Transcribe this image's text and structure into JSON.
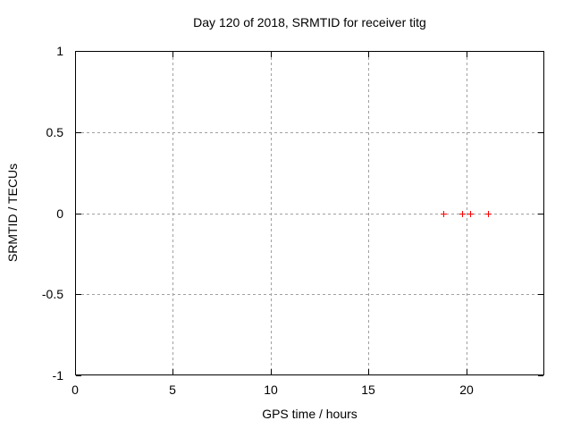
{
  "chart_data": {
    "type": "scatter",
    "title": "Day 120 of 2018, SRMTID for receiver titg",
    "xlabel": "GPS time / hours",
    "ylabel": "SRMTID / TECUs",
    "xlim": [
      0,
      24
    ],
    "ylim": [
      -1,
      1
    ],
    "xticks": [
      0,
      5,
      10,
      15,
      20
    ],
    "yticks": [
      1,
      0.5,
      0,
      -0.5,
      -1
    ],
    "grid": true,
    "grid_style": "dashed",
    "legend": "none",
    "marker": "plus",
    "colors": {
      "marker": "#ff0000",
      "grid": "#a0a0a0",
      "axis": "#000000",
      "background": "#ffffff",
      "text": "#000000"
    },
    "series": [
      {
        "x": [
          18.85,
          19.8,
          20.2,
          21.1
        ],
        "y": [
          0,
          0,
          0,
          0
        ]
      }
    ]
  }
}
